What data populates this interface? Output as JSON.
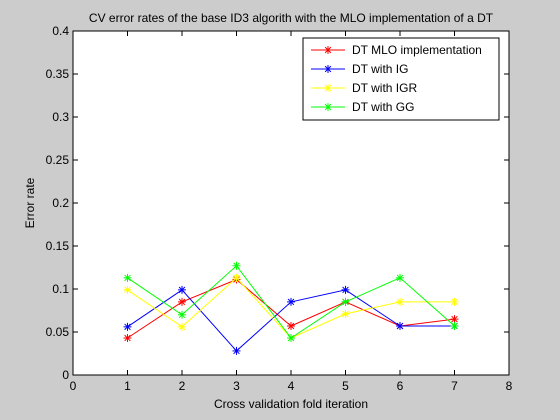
{
  "chart_data": {
    "type": "line",
    "title": "CV error rates of the base ID3 algorith with the MLO implementation of a DT",
    "xlabel": "Cross validation fold iteration",
    "ylabel": "Error rate",
    "xlim": [
      0,
      8
    ],
    "ylim": [
      0,
      0.4
    ],
    "xticks": [
      0,
      1,
      2,
      3,
      4,
      5,
      6,
      7,
      8
    ],
    "xtick_labels": [
      "0",
      "1",
      "2",
      "3",
      "4",
      "5",
      "6",
      "7",
      "8"
    ],
    "yticks": [
      0,
      0.05,
      0.1,
      0.15,
      0.2,
      0.25,
      0.3,
      0.35,
      0.4
    ],
    "ytick_labels": [
      "0",
      "0.05",
      "0.1",
      "0.15",
      "0.2",
      "0.25",
      "0.3",
      "0.35",
      "0.4"
    ],
    "grid": false,
    "legend_position": "top-right",
    "x": [
      1,
      2,
      3,
      4,
      5,
      6,
      7
    ],
    "series": [
      {
        "name": "DT MLO implementation",
        "color": "#ff0000",
        "marker": "asterisk",
        "values": [
          0.043,
          0.085,
          0.111,
          0.057,
          0.085,
          0.057,
          0.065
        ]
      },
      {
        "name": "DT with IG",
        "color": "#0000ff",
        "marker": "asterisk",
        "values": [
          0.056,
          0.099,
          0.028,
          0.085,
          0.099,
          0.057,
          0.057
        ]
      },
      {
        "name": "DT with IGR",
        "color": "#ffff00",
        "marker": "asterisk",
        "values": [
          0.099,
          0.056,
          0.113,
          0.043,
          0.071,
          0.085,
          0.085
        ]
      },
      {
        "name": "DT with GG",
        "color": "#00ff00",
        "marker": "asterisk",
        "values": [
          0.113,
          0.07,
          0.127,
          0.043,
          0.085,
          0.113,
          0.057
        ]
      }
    ]
  }
}
